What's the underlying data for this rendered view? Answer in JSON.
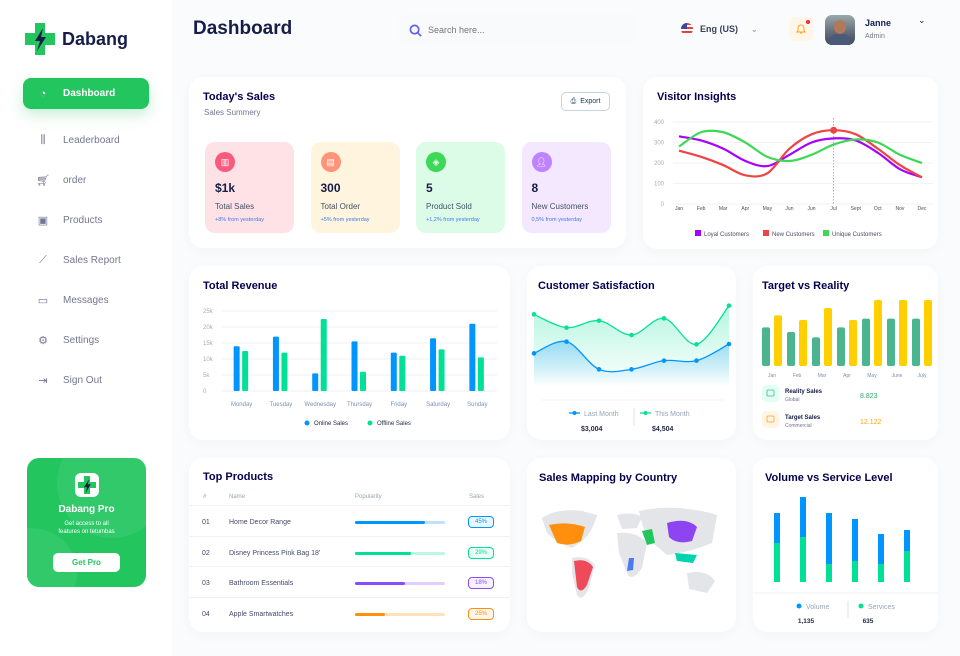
{
  "app": {
    "name": "Dabang"
  },
  "sidebar": {
    "items": [
      {
        "label": "Dashboard",
        "icon": "pie-chart-icon",
        "active": true
      },
      {
        "label": "Leaderboard",
        "icon": "bar-chart-icon"
      },
      {
        "label": "order",
        "icon": "cart-icon"
      },
      {
        "label": "Products",
        "icon": "bag-icon"
      },
      {
        "label": "Sales Report",
        "icon": "line-chart-icon"
      },
      {
        "label": "Messages",
        "icon": "message-icon"
      },
      {
        "label": "Settings",
        "icon": "gear-icon"
      },
      {
        "label": "Sign Out",
        "icon": "sign-out-icon"
      }
    ],
    "pro": {
      "title": "Dabang Pro",
      "desc1": "Get access to all",
      "desc2": "features on tetumbas",
      "button": "Get Pro"
    }
  },
  "header": {
    "title": "Dashboard",
    "search_placeholder": "Search here...",
    "language": "Eng (US)",
    "user": {
      "name": "Janne",
      "role": "Admin"
    }
  },
  "colors": {
    "accent": "#22c55e",
    "navy": "#151d48",
    "blue": "#0095ff",
    "green": "#00e096",
    "purple": "#a700ff",
    "red": "#ef4444",
    "yellow": "#ffcf00"
  },
  "today_sales": {
    "title": "Today's Sales",
    "subtitle": "Sales Summery",
    "export": "Export",
    "cards": [
      {
        "value": "$1k",
        "label": "Total Sales",
        "delta": "+8% from yesterday",
        "bg": "#ffe2e5",
        "icon_bg": "#fa5a7d",
        "icon": "chart-icon"
      },
      {
        "value": "300",
        "label": "Total Order",
        "delta": "+5% from yesterday",
        "bg": "#fff4de",
        "icon_bg": "#ff947a",
        "icon": "document-icon"
      },
      {
        "value": "5",
        "label": "Product Sold",
        "delta": "+1,2% from yesterday",
        "bg": "#dcfce7",
        "icon_bg": "#3cd856",
        "icon": "tag-icon"
      },
      {
        "value": "8",
        "label": "New Customers",
        "delta": "0,5% from yesterday",
        "bg": "#f3e8ff",
        "icon_bg": "#bf83ff",
        "icon": "user-add-icon"
      }
    ]
  },
  "top_products": {
    "title": "Top Products",
    "headers": [
      "#",
      "Name",
      "Popularity",
      "Sales"
    ],
    "rows": [
      {
        "num": "01",
        "name": "Home Decor Range",
        "popularity": 78,
        "sales": "45%",
        "color": "#0095ff"
      },
      {
        "num": "02",
        "name": "Disney Princess Pink Bag 18'",
        "popularity": 62,
        "sales": "29%",
        "color": "#00e096"
      },
      {
        "num": "03",
        "name": "Bathroom Essentials",
        "popularity": 56,
        "sales": "18%",
        "color": "#884dff"
      },
      {
        "num": "04",
        "name": "Apple Smartwatches",
        "popularity": 33,
        "sales": "25%",
        "color": "#ff8f0d"
      }
    ]
  },
  "map": {
    "title": "Sales Mapping by Country"
  },
  "chart_data": [
    {
      "id": "visitor",
      "type": "line",
      "title": "Visitor Insights",
      "categories": [
        "Jan",
        "Feb",
        "Mar",
        "Apr",
        "May",
        "Jun",
        "Jun",
        "Jul",
        "Sept",
        "Oct",
        "Nov",
        "Dec"
      ],
      "ylim": [
        0,
        400
      ],
      "yticks": [
        "0",
        "100",
        "200",
        "300",
        "400"
      ],
      "grid": true,
      "legend": "bottom",
      "highlight": {
        "series": 1,
        "index": 7
      },
      "series": [
        {
          "name": "Loyal Customers",
          "color": "#a700ff",
          "values": [
            330,
            310,
            270,
            210,
            185,
            240,
            300,
            320,
            310,
            250,
            170,
            130
          ]
        },
        {
          "name": "New Customers",
          "color": "#ef4444",
          "values": [
            260,
            230,
            190,
            140,
            150,
            270,
            340,
            360,
            340,
            270,
            190,
            130
          ]
        },
        {
          "name": "Unique Customers",
          "color": "#3cd856",
          "values": [
            280,
            350,
            350,
            300,
            230,
            210,
            240,
            290,
            315,
            300,
            240,
            200
          ]
        }
      ]
    },
    {
      "id": "revenue",
      "type": "bar",
      "title": "Total Revenue",
      "categories": [
        "Monday",
        "Tuesday",
        "Wednesday",
        "Thursday",
        "Friday",
        "Saturday",
        "Sunday"
      ],
      "ylim": [
        0,
        25
      ],
      "yticks": [
        "0",
        "5k",
        "10k",
        "15k",
        "20k",
        "25k"
      ],
      "grid": true,
      "legend": "bottom",
      "series": [
        {
          "name": "Online Sales",
          "color": "#0095ff",
          "values": [
            14,
            17,
            5.5,
            15.5,
            12,
            16.5,
            21
          ]
        },
        {
          "name": "Offline Sales",
          "color": "#00e096",
          "values": [
            12.5,
            12,
            22.5,
            6,
            11,
            13,
            10.5
          ]
        }
      ]
    },
    {
      "id": "satisfaction",
      "type": "area",
      "title": "Customer Satisfaction",
      "ylim": [
        0,
        400
      ],
      "series": [
        {
          "name": "Last Month",
          "total": "$3,004",
          "color": "#0095ff",
          "values": [
            150,
            185,
            102,
            102,
            128,
            128,
            178
          ]
        },
        {
          "name": "This Month",
          "total": "$4,504",
          "color": "#07e098",
          "values": [
            267,
            227,
            248,
            205,
            255,
            177,
            293
          ]
        }
      ]
    },
    {
      "id": "target",
      "type": "bar",
      "title": "Target vs Reality",
      "categories": [
        "Jan",
        "Feb",
        "Mar",
        "Apr",
        "May",
        "June",
        "July"
      ],
      "series": [
        {
          "name": "Reality Sales",
          "sub": "Global",
          "total": "8.823",
          "color": "#4ab58e",
          "values": [
            5.8,
            5.1,
            4.3,
            5.8,
            7.1,
            7.1,
            7.1
          ]
        },
        {
          "name": "Target Sales",
          "sub": "Commercial",
          "total": "12.122",
          "color": "#ffcf00",
          "values": [
            7.6,
            6.9,
            8.7,
            6.9,
            9.9,
            9.9,
            9.9
          ]
        }
      ]
    },
    {
      "id": "volume",
      "type": "stacked-bar",
      "title": "Volume vs Service Level",
      "series": [
        {
          "name": "Volume",
          "total": "1,135",
          "color": "#0095ff",
          "values": [
            30,
            40,
            51,
            42,
            30,
            21
          ]
        },
        {
          "name": "Services",
          "total": "635",
          "color": "#00e096",
          "values": [
            39,
            45,
            18,
            21,
            18,
            31
          ]
        }
      ]
    }
  ]
}
